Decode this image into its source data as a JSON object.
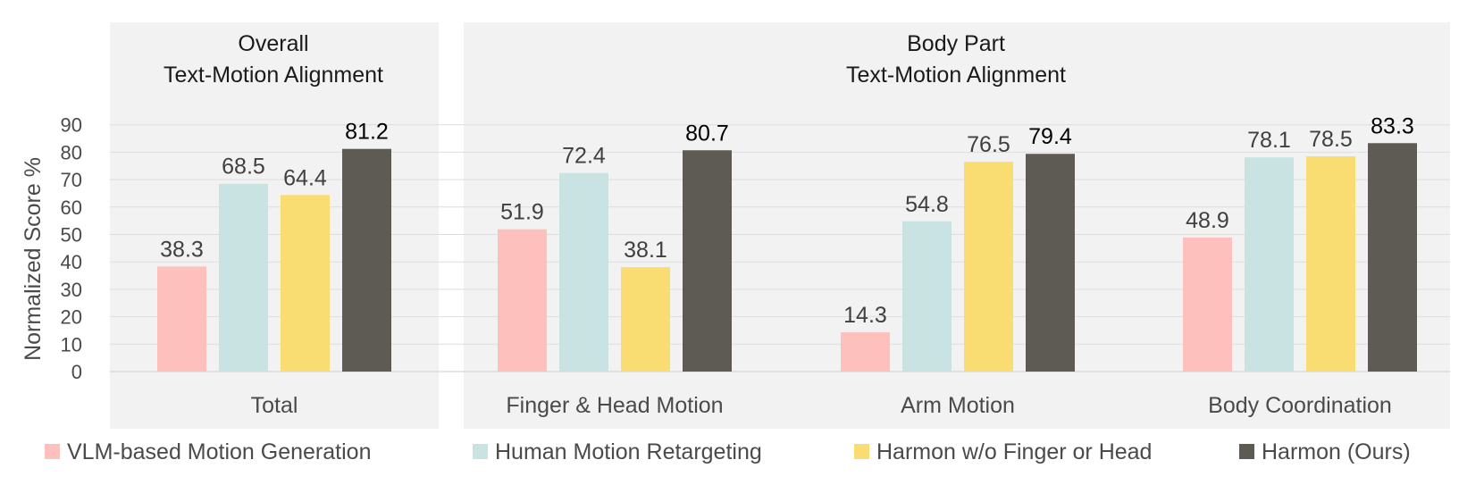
{
  "chart_data": {
    "type": "bar",
    "ylabel": "Normalized Score %",
    "ylim": [
      0,
      90
    ],
    "yticks": [
      0,
      10,
      20,
      30,
      40,
      50,
      60,
      70,
      80,
      90
    ],
    "grid": true,
    "legend_position": "bottom",
    "colors": [
      "#fdc0bd",
      "#c9e3e3",
      "#f9dd73",
      "#5e5a54"
    ],
    "series": [
      {
        "name": "VLM-based Motion Generation"
      },
      {
        "name": "Human Motion Retargeting"
      },
      {
        "name": "Harmon w/o Finger or Head"
      },
      {
        "name": "Harmon (Ours)"
      }
    ],
    "panels": [
      {
        "title_line1": "Overall",
        "title_line2": "Text-Motion Alignment",
        "groups": [
          {
            "category": "Total",
            "values": [
              38.3,
              68.5,
              64.4,
              81.2
            ]
          }
        ]
      },
      {
        "title_line1": "Body Part",
        "title_line2": "Text-Motion Alignment",
        "groups": [
          {
            "category": "Finger & Head Motion",
            "values": [
              51.9,
              72.4,
              38.1,
              80.7
            ]
          },
          {
            "category": "Arm Motion",
            "values": [
              14.3,
              54.8,
              76.5,
              79.4
            ]
          },
          {
            "category": "Body Coordination",
            "values": [
              48.9,
              78.1,
              78.5,
              83.3
            ]
          }
        ]
      }
    ]
  }
}
